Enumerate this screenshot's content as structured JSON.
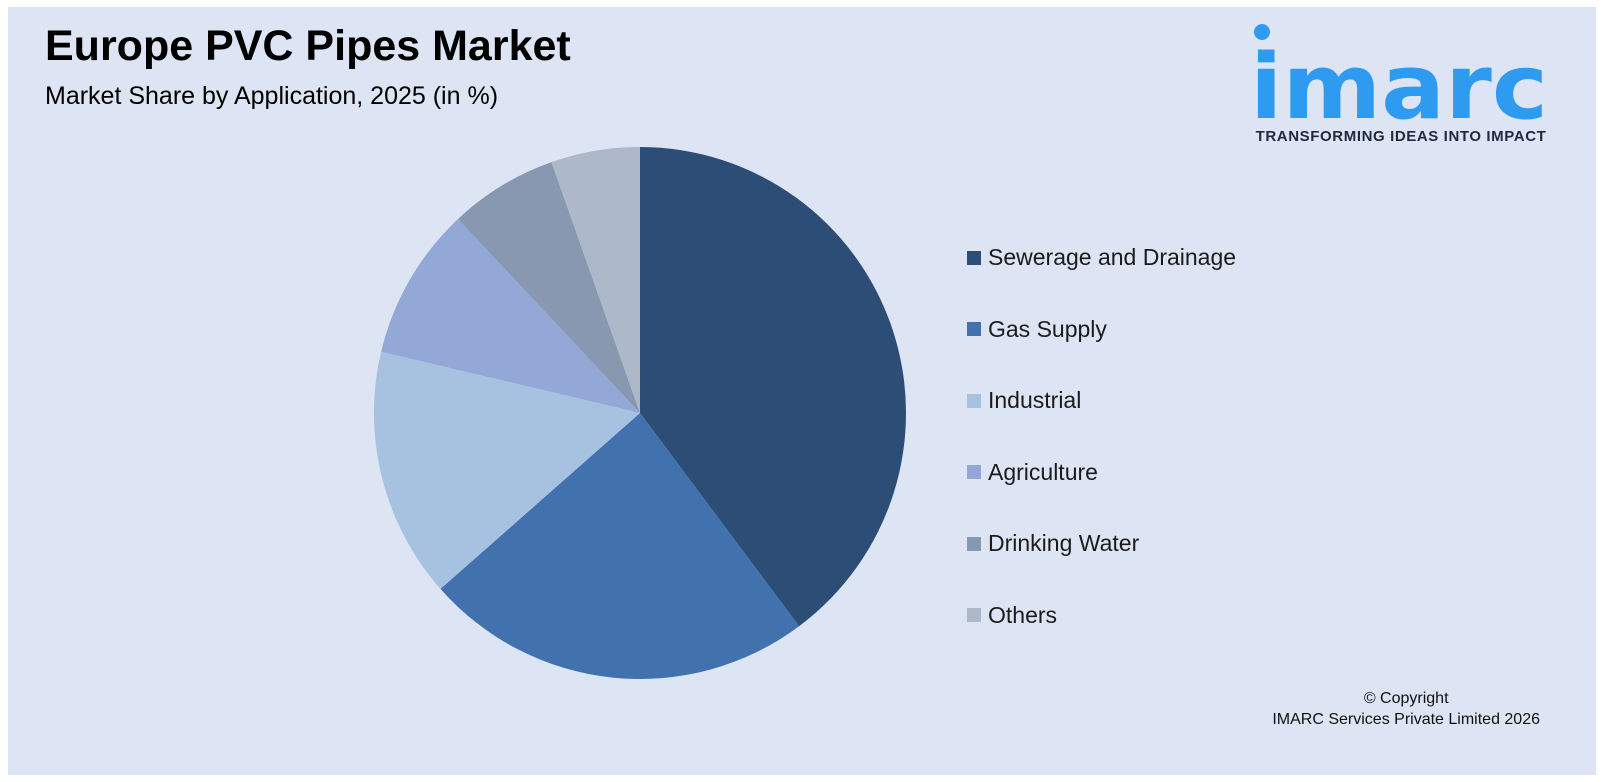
{
  "header": {
    "title": "Europe PVC Pipes Market",
    "subtitle": "Market Share by Application, 2025 (in %)"
  },
  "logo": {
    "text": "imarc",
    "tagline": "TRANSFORMING IDEAS INTO IMPACT",
    "color": "#2e9bf0"
  },
  "chart_data": {
    "type": "pie",
    "title": "Europe PVC Pipes Market",
    "subtitle": "Market Share by Application, 2025 (in %)",
    "categories": [
      "Sewerage and Drainage",
      "Gas Supply",
      "Industrial",
      "Agriculture",
      "Drinking Water",
      "Others"
    ],
    "values": [
      39.8,
      23.7,
      15.2,
      9.3,
      6.6,
      5.4
    ],
    "colors": [
      "#2c4d75",
      "#4172ae",
      "#a7c2e1",
      "#94a8d8",
      "#8798b0",
      "#adb8c9"
    ],
    "start_angle_deg": 0,
    "direction": "clockwise",
    "legend_position": "right"
  },
  "footer": {
    "copyright_line1": "© Copyright",
    "copyright_line2": "IMARC Services Private Limited 2026"
  }
}
